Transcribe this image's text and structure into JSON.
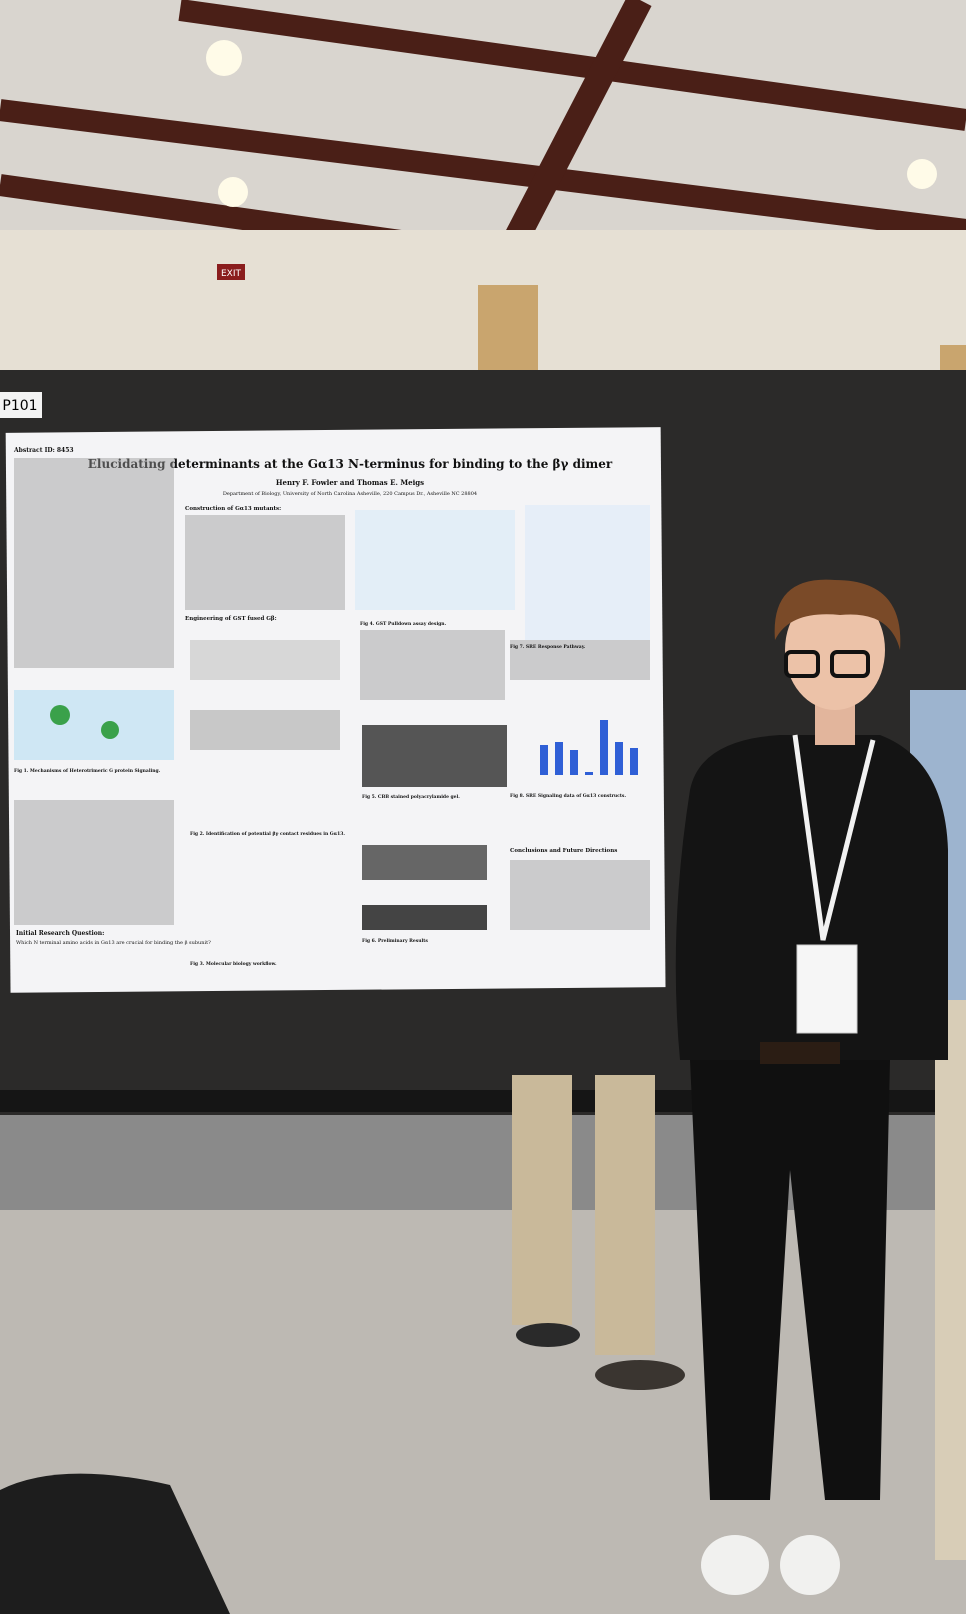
{
  "signs": {
    "exit": "EXIT",
    "board_number": "P101"
  },
  "poster": {
    "title": "Elucidating determinants at the Gα13 N-terminus for binding to the βγ dimer",
    "authors": "Henry F. Fowler and Thomas E. Meigs",
    "affiliation": "Department of Biology, University of North Carolina Asheville, 220 Campus Dr., Asheville NC 28804",
    "abstract_heading": "Abstract ID: 8453",
    "sections": [
      "Construction of Gα13 mutants:",
      "Engineering of GST fused Gβ:",
      "Initial Research Question:",
      "Conclusions and Future Directions"
    ],
    "question": "Which N terminal amino acids in Gα13 are crucial for binding the β subunit?",
    "figure_captions": [
      "Fig 1. Mechanisms of Heterotrimeric G protein Signaling.",
      "Fig 2. Identification of potential βγ contact residues in Gα13.",
      "Fig 3. Molecular biology workflow.",
      "Fig 4. GST Pulldown assay design.",
      "Fig 5. CBB stained polyacrylamide gel.",
      "Fig 6. Preliminary Results",
      "Fig 7. SRE Response Pathway.",
      "Fig 8. SRE Signaling data of Gα13 constructs."
    ]
  }
}
